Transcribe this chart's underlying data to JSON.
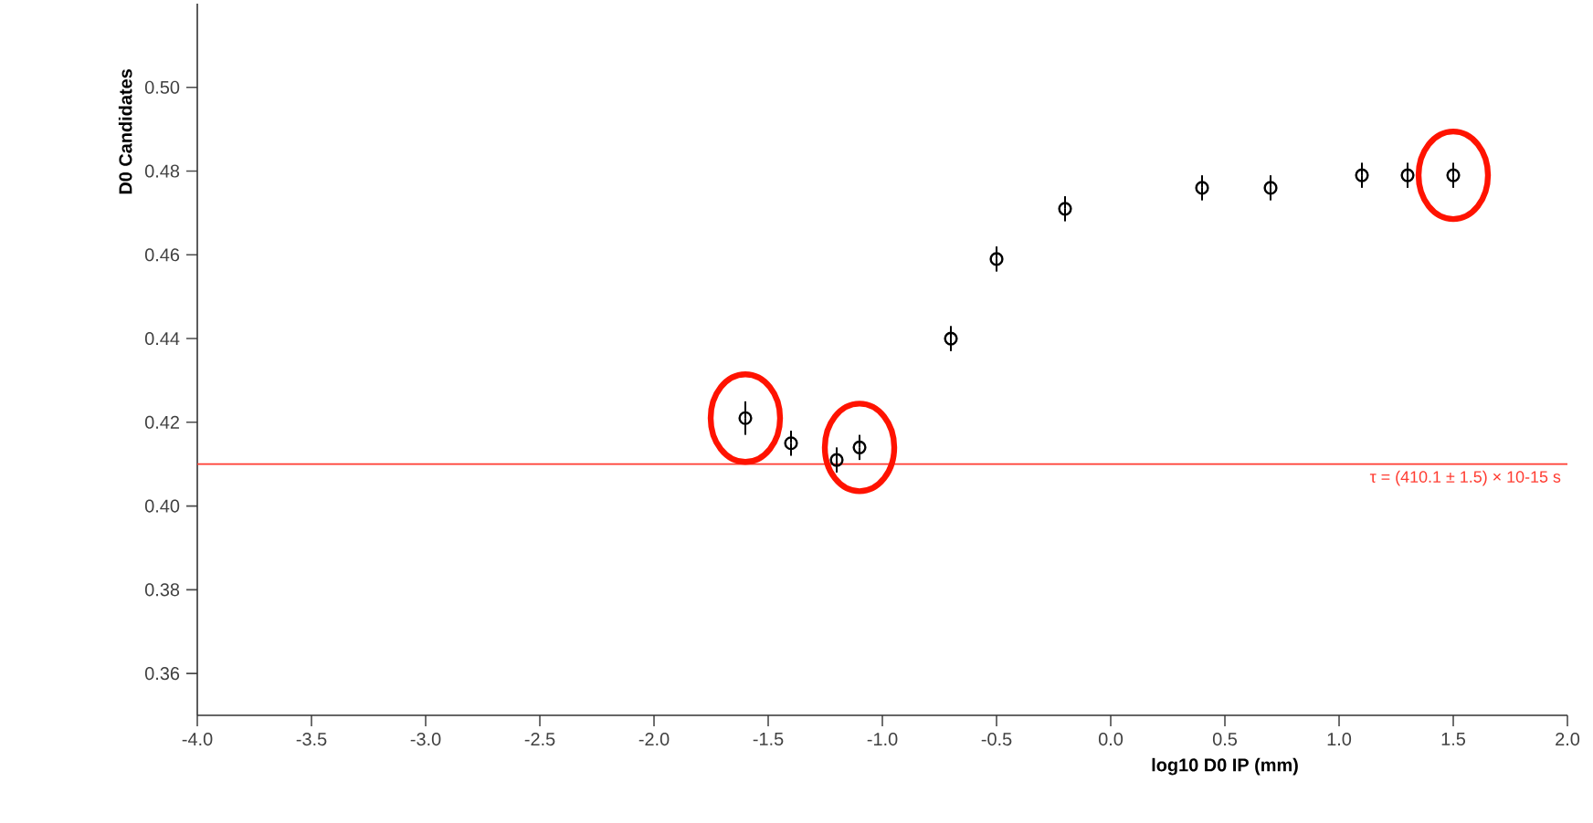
{
  "chart_data": {
    "type": "scatter",
    "xlabel": "log10 D0 IP (mm)",
    "ylabel": "D0 Candidates",
    "x": [
      -1.6,
      -1.4,
      -1.2,
      -1.1,
      -0.7,
      -0.5,
      -0.2,
      0.4,
      0.7,
      1.1,
      1.3,
      1.5
    ],
    "values": [
      0.421,
      0.415,
      0.411,
      0.414,
      0.44,
      0.459,
      0.471,
      0.476,
      0.476,
      0.479,
      0.479,
      0.479
    ],
    "errors": [
      0.004,
      0.003,
      0.003,
      0.003,
      0.003,
      0.003,
      0.003,
      0.003,
      0.003,
      0.003,
      0.003,
      0.003
    ],
    "color": "#000000",
    "marker": "circle",
    "xlim": [
      -4.0,
      2.0
    ],
    "ylim": [
      0.35,
      0.52
    ],
    "xticks": [
      {
        "value": -4.0,
        "label": "-4.0"
      },
      {
        "value": -3.5,
        "label": "-3.5"
      },
      {
        "value": -3.0,
        "label": "-3.0"
      },
      {
        "value": -2.5,
        "label": "-2.5"
      },
      {
        "value": -2.0,
        "label": "-2.0"
      },
      {
        "value": -1.5,
        "label": "-1.5"
      },
      {
        "value": -1.0,
        "label": "-1.0"
      },
      {
        "value": -0.5,
        "label": "-0.5"
      },
      {
        "value": 0.0,
        "label": "0.0"
      },
      {
        "value": 0.5,
        "label": "0.5"
      },
      {
        "value": 1.0,
        "label": "1.0"
      },
      {
        "value": 1.5,
        "label": "1.5"
      },
      {
        "value": 2.0,
        "label": "2.0"
      }
    ],
    "yticks": [
      {
        "value": 0.36,
        "label": "0.36"
      },
      {
        "value": 0.38,
        "label": "0.38"
      },
      {
        "value": 0.4,
        "label": "0.40"
      },
      {
        "value": 0.42,
        "label": "0.42"
      },
      {
        "value": 0.44,
        "label": "0.44"
      },
      {
        "value": 0.46,
        "label": "0.46"
      },
      {
        "value": 0.48,
        "label": "0.48"
      },
      {
        "value": 0.5,
        "label": "0.50"
      }
    ],
    "ref_lines": [
      {
        "axis": "y",
        "value": 0.41,
        "label": "τ = (410.1 ± 1.5) × 10-15 s",
        "color": "#ff3b30"
      }
    ]
  }
}
